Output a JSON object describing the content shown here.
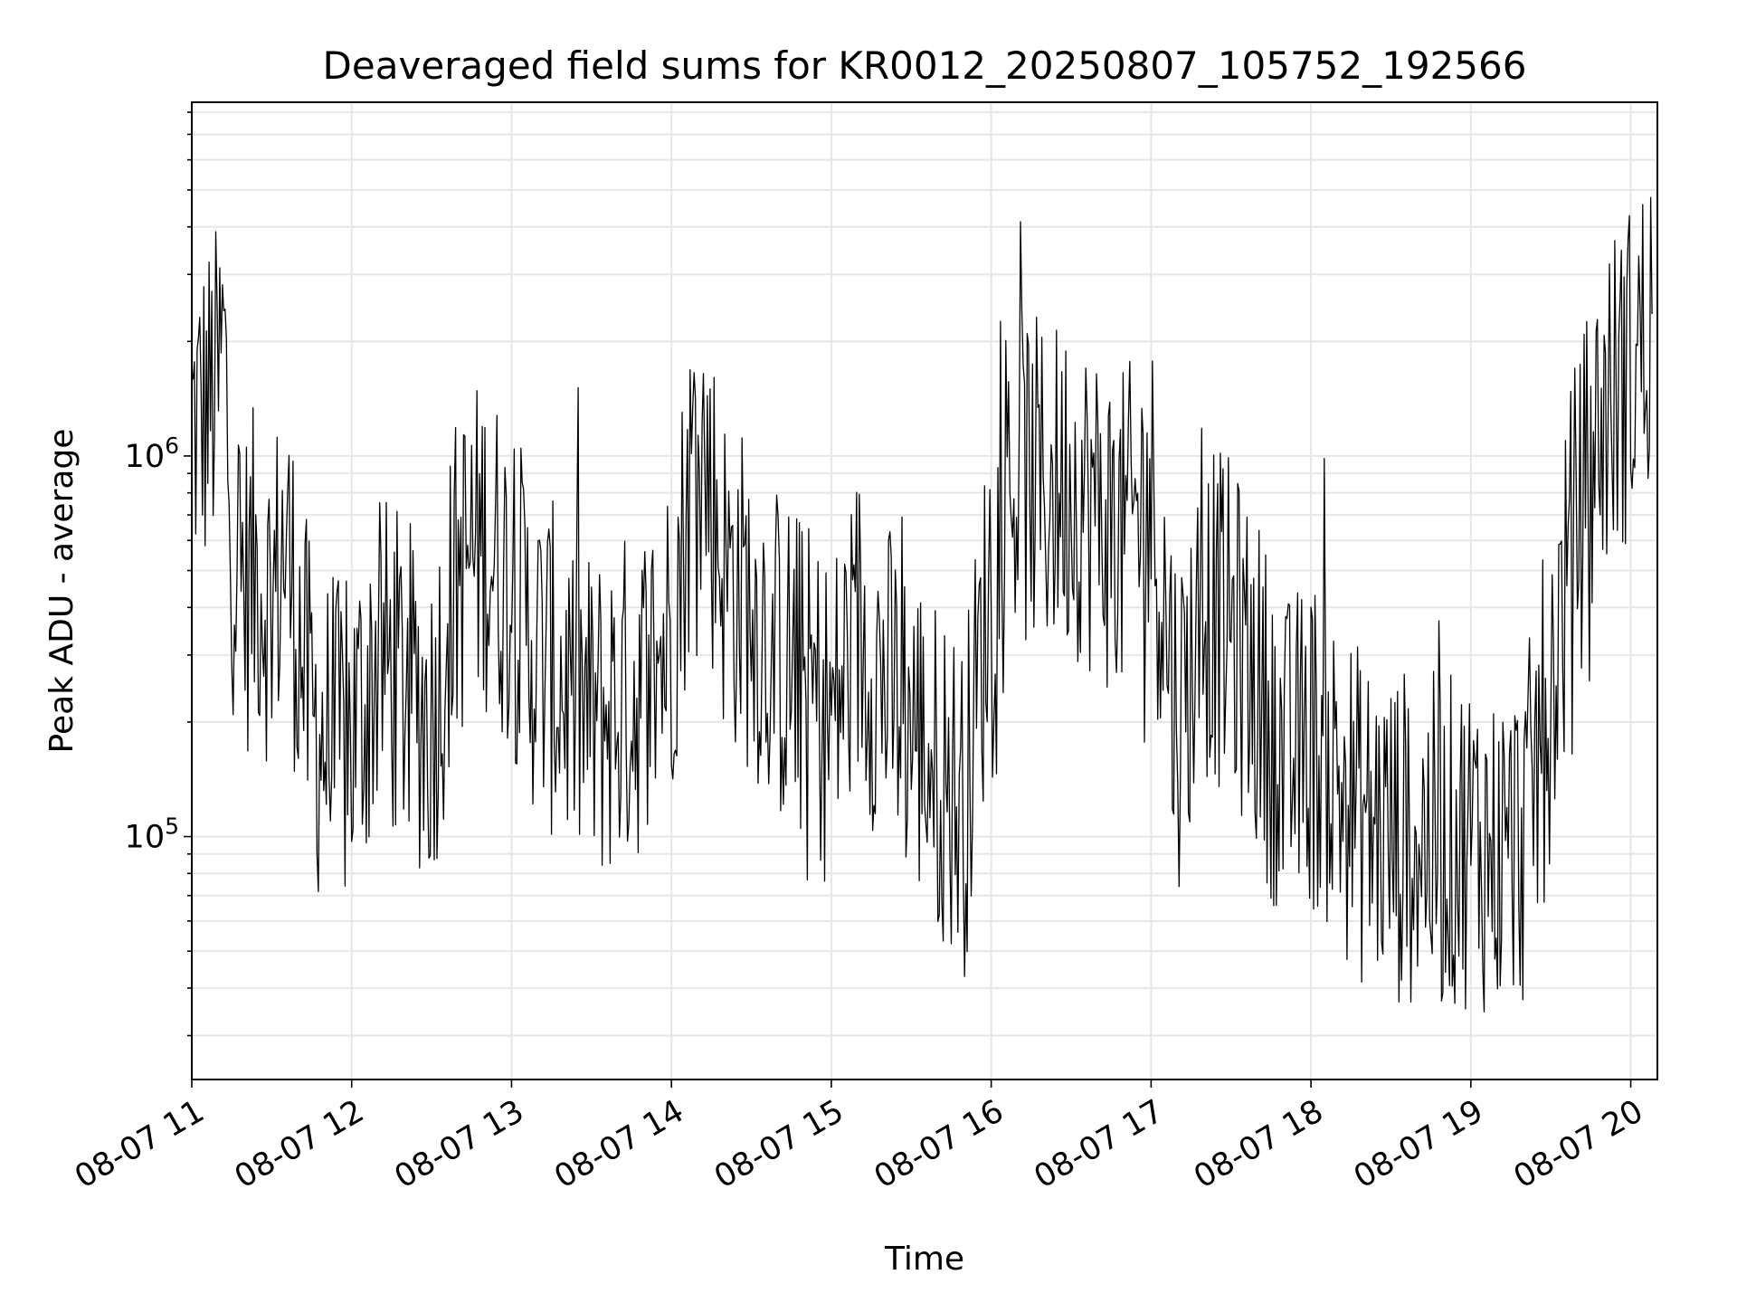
{
  "chart_data": {
    "type": "line",
    "title": "Deaveraged field sums for KR0012_20250807_105752_192566",
    "xlabel": "Time",
    "ylabel": "Peak ADU - average",
    "yscale": "log",
    "ylim": [
      23000,
      8500000
    ],
    "xlim": [
      "08-07 11:00",
      "08-07 20:10"
    ],
    "grid": true,
    "line_color": "#000000",
    "grid_color": "#e6e6e6",
    "x_ticks": [
      "08-07 11",
      "08-07 12",
      "08-07 13",
      "08-07 14",
      "08-07 15",
      "08-07 16",
      "08-07 17",
      "08-07 18",
      "08-07 19",
      "08-07 20"
    ],
    "y_ticks": [
      {
        "value": 100000,
        "base": "10",
        "exp": "5"
      },
      {
        "value": 1000000,
        "base": "10",
        "exp": "6"
      }
    ],
    "series": [
      {
        "x": [
          "08-07 11:00",
          "08-07 11:05",
          "08-07 11:10",
          "08-07 11:12",
          "08-07 11:15",
          "08-07 11:20",
          "08-07 11:25",
          "08-07 11:30",
          "08-07 11:35",
          "08-07 11:40",
          "08-07 11:45",
          "08-07 11:50",
          "08-07 11:55",
          "08-07 12:00",
          "08-07 12:10",
          "08-07 12:20",
          "08-07 12:30",
          "08-07 12:40",
          "08-07 12:50",
          "08-07 13:00",
          "08-07 13:10",
          "08-07 13:20",
          "08-07 13:30",
          "08-07 13:40",
          "08-07 13:50",
          "08-07 14:00",
          "08-07 14:10",
          "08-07 14:20",
          "08-07 14:30",
          "08-07 14:40",
          "08-07 14:50",
          "08-07 15:00",
          "08-07 15:10",
          "08-07 15:20",
          "08-07 15:30",
          "08-07 15:40",
          "08-07 15:50",
          "08-07 16:00",
          "08-07 16:10",
          "08-07 16:20",
          "08-07 16:30",
          "08-07 16:40",
          "08-07 16:50",
          "08-07 17:00",
          "08-07 17:10",
          "08-07 17:20",
          "08-07 17:30",
          "08-07 17:40",
          "08-07 17:50",
          "08-07 18:00",
          "08-07 18:10",
          "08-07 18:20",
          "08-07 18:30",
          "08-07 18:40",
          "08-07 18:50",
          "08-07 19:00",
          "08-07 19:10",
          "08-07 19:20",
          "08-07 19:30",
          "08-07 19:40",
          "08-07 19:50",
          "08-07 20:00",
          "08-07 20:05",
          "08-07 20:08"
        ],
        "y": [
          1200000,
          1300000,
          1500000,
          2000000,
          600000,
          450000,
          500000,
          400000,
          600000,
          350000,
          200000,
          180000,
          170000,
          180000,
          300000,
          250000,
          200000,
          500000,
          600000,
          450000,
          300000,
          250000,
          200000,
          220000,
          250000,
          350000,
          1200000,
          500000,
          400000,
          300000,
          250000,
          200000,
          350000,
          250000,
          200000,
          150000,
          120000,
          500000,
          900000,
          800000,
          850000,
          700000,
          600000,
          800000,
          200000,
          400000,
          350000,
          250000,
          150000,
          180000,
          140000,
          110000,
          100000,
          100000,
          95000,
          100000,
          90000,
          100000,
          250000,
          700000,
          1300000,
          1700000,
          2000000,
          2500000
        ]
      }
    ]
  }
}
